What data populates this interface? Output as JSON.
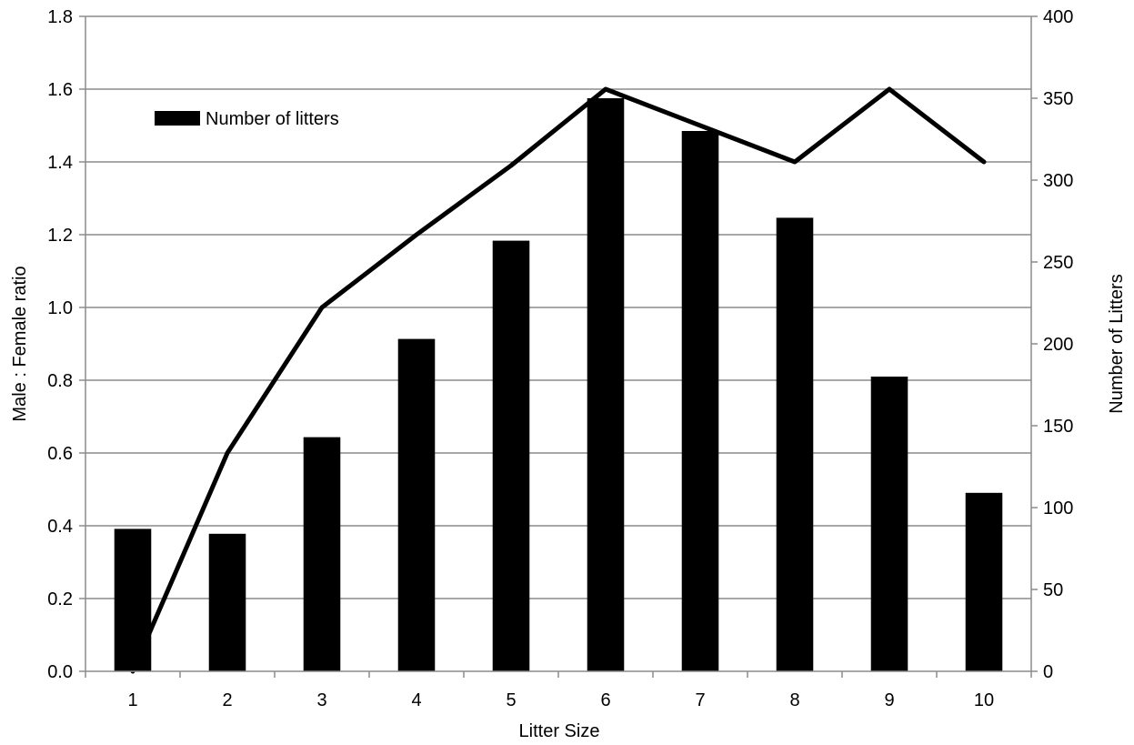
{
  "chart_data": {
    "type": "bar+line",
    "title": "",
    "xlabel": "Litter Size",
    "ylabel_left": "Male : Female ratio",
    "ylabel_right": "Number of Litters",
    "categories": [
      "1",
      "2",
      "3",
      "4",
      "5",
      "6",
      "7",
      "8",
      "9",
      "10"
    ],
    "ylim_left": [
      0,
      1.8
    ],
    "ylim_right": [
      0,
      400
    ],
    "yticks_left": [
      "0.0",
      "0.2",
      "0.4",
      "0.6",
      "0.8",
      "1.0",
      "1.2",
      "1.4",
      "1.6",
      "1.8"
    ],
    "yticks_right": [
      "0",
      "50",
      "100",
      "150",
      "200",
      "250",
      "300",
      "350",
      "400"
    ],
    "grid": true,
    "legend_position": "top-left",
    "series": [
      {
        "name": "Number of litters",
        "kind": "bar",
        "axis": "right",
        "color": "#000000",
        "values": [
          87,
          84,
          143,
          203,
          263,
          350,
          330,
          277,
          180,
          109
        ]
      },
      {
        "kind": "line",
        "axis": "left",
        "color": "#000000",
        "values": [
          0.0,
          0.6,
          1.0,
          1.2,
          1.39,
          1.6,
          1.5,
          1.4,
          1.6,
          1.4
        ]
      }
    ]
  }
}
